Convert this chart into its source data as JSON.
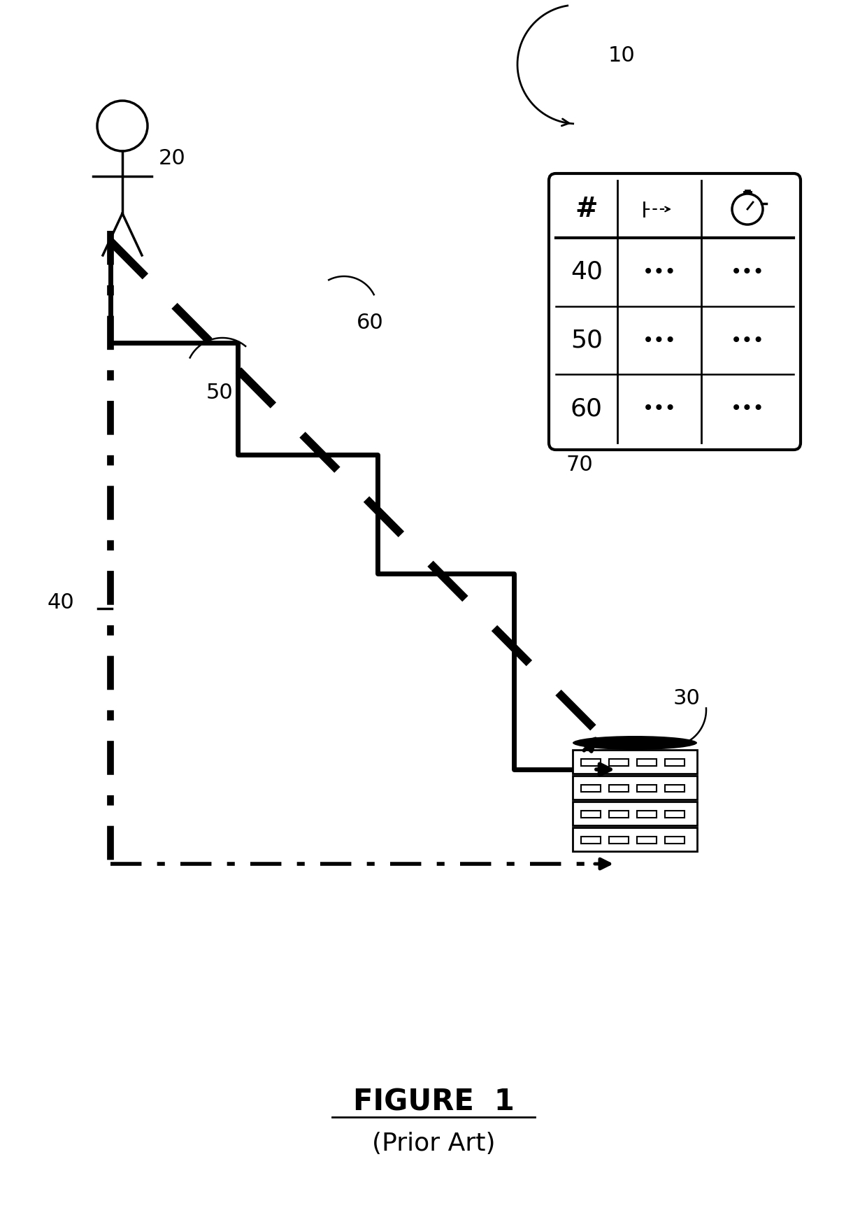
{
  "bg_color": "#ffffff",
  "title": "FIGURE  1",
  "subtitle": "(Prior Art)",
  "label_10": "10",
  "label_20": "20",
  "label_30": "30",
  "label_40": "40",
  "label_50": "50",
  "label_60": "60",
  "label_70": "70",
  "table_rows": [
    "40",
    "50",
    "60"
  ],
  "text_color": "#000000",
  "line_color": "#000000"
}
